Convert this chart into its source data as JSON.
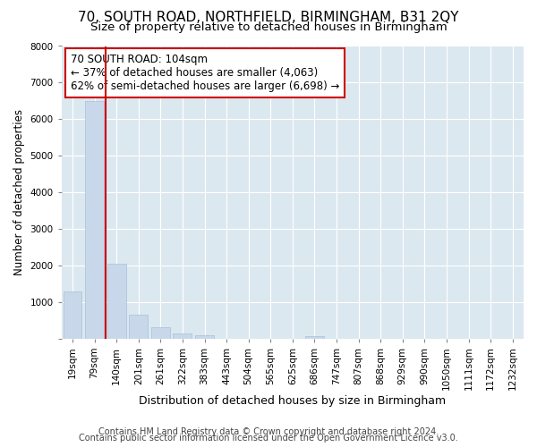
{
  "title": "70, SOUTH ROAD, NORTHFIELD, BIRMINGHAM, B31 2QY",
  "subtitle": "Size of property relative to detached houses in Birmingham",
  "xlabel": "Distribution of detached houses by size in Birmingham",
  "ylabel": "Number of detached properties",
  "categories": [
    "19sqm",
    "79sqm",
    "140sqm",
    "201sqm",
    "261sqm",
    "322sqm",
    "383sqm",
    "443sqm",
    "504sqm",
    "565sqm",
    "625sqm",
    "686sqm",
    "747sqm",
    "807sqm",
    "868sqm",
    "929sqm",
    "990sqm",
    "1050sqm",
    "1111sqm",
    "1172sqm",
    "1232sqm"
  ],
  "values": [
    1280,
    6490,
    2050,
    640,
    300,
    145,
    95,
    0,
    0,
    0,
    0,
    60,
    0,
    0,
    0,
    0,
    0,
    0,
    0,
    0,
    0
  ],
  "bar_color": "#c8d8ea",
  "bar_edge_color": "#a8c0d6",
  "vline_color": "#cc0000",
  "annotation_text": "70 SOUTH ROAD: 104sqm\n← 37% of detached houses are smaller (4,063)\n62% of semi-detached houses are larger (6,698) →",
  "annotation_box_edgecolor": "#cc0000",
  "ylim": [
    0,
    8000
  ],
  "yticks": [
    0,
    1000,
    2000,
    3000,
    4000,
    5000,
    6000,
    7000,
    8000
  ],
  "figure_bg": "#ffffff",
  "axes_bg": "#dce8f0",
  "grid_color": "#ffffff",
  "footer_line1": "Contains HM Land Registry data © Crown copyright and database right 2024.",
  "footer_line2": "Contains public sector information licensed under the Open Government Licence v3.0.",
  "title_fontsize": 11,
  "subtitle_fontsize": 9.5,
  "tick_fontsize": 7.5,
  "ylabel_fontsize": 8.5,
  "xlabel_fontsize": 9,
  "footer_fontsize": 7,
  "annotation_fontsize": 8.5
}
